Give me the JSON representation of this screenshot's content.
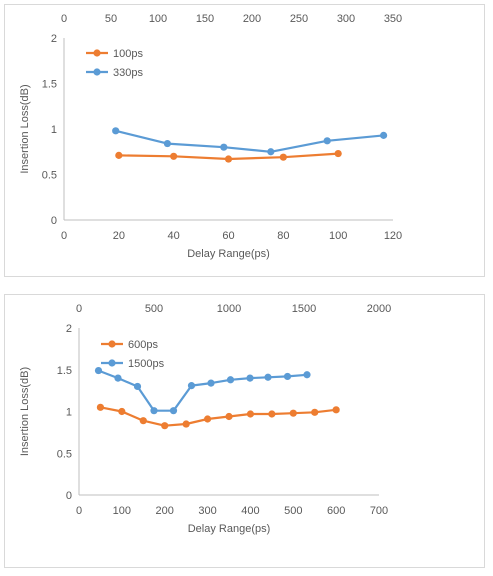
{
  "chart_data": [
    {
      "type": "scatter",
      "xlabel": "Delay Range(ps)",
      "ylabel": "Insertion Loss(dB)",
      "xlim": [
        0,
        120
      ],
      "x2lim": [
        0,
        350
      ],
      "ylim": [
        0,
        2
      ],
      "x_ticks": [
        "0",
        "20",
        "40",
        "60",
        "80",
        "100",
        "120"
      ],
      "x2_ticks": [
        "0",
        "50",
        "100",
        "150",
        "200",
        "250",
        "300",
        "350"
      ],
      "y_ticks": [
        "0",
        "0.5",
        "1",
        "1.5",
        "2"
      ],
      "grid": false,
      "legend_position": "top-left",
      "series": [
        {
          "name": "100ps",
          "color": "#ed7d31",
          "axis": "primary",
          "points": [
            [
              20,
              0.71
            ],
            [
              40,
              0.7
            ],
            [
              60,
              0.67
            ],
            [
              80,
              0.69
            ],
            [
              100,
              0.73
            ]
          ]
        },
        {
          "name": "330ps",
          "color": "#5b9bd5",
          "axis": "secondary",
          "points": [
            [
              55,
              0.98
            ],
            [
              110,
              0.84
            ],
            [
              170,
              0.8
            ],
            [
              220,
              0.75
            ],
            [
              280,
              0.87
            ],
            [
              340,
              0.93
            ]
          ]
        }
      ]
    },
    {
      "type": "scatter",
      "xlabel": "Delay Range(ps)",
      "ylabel": "Insertion Loss(dB)",
      "xlim": [
        0,
        700
      ],
      "x2lim": [
        0,
        2000
      ],
      "ylim": [
        0,
        2
      ],
      "x_ticks": [
        "0",
        "100",
        "200",
        "300",
        "400",
        "500",
        "600",
        "700"
      ],
      "x2_ticks": [
        "0",
        "500",
        "1000",
        "1500",
        "2000"
      ],
      "y_ticks": [
        "0",
        "0.5",
        "1",
        "1.5",
        "2"
      ],
      "grid": false,
      "legend_position": "top-left",
      "series": [
        {
          "name": "600ps",
          "color": "#ed7d31",
          "axis": "primary",
          "points": [
            [
              50,
              1.05
            ],
            [
              100,
              1.0
            ],
            [
              150,
              0.89
            ],
            [
              200,
              0.83
            ],
            [
              250,
              0.85
            ],
            [
              300,
              0.91
            ],
            [
              350,
              0.94
            ],
            [
              400,
              0.97
            ],
            [
              450,
              0.97
            ],
            [
              500,
              0.98
            ],
            [
              550,
              0.99
            ],
            [
              600,
              1.02
            ]
          ]
        },
        {
          "name": "1500ps",
          "color": "#5b9bd5",
          "axis": "secondary",
          "points": [
            [
              130,
              1.49
            ],
            [
              260,
              1.4
            ],
            [
              390,
              1.3
            ],
            [
              500,
              1.01
            ],
            [
              630,
              1.01
            ],
            [
              750,
              1.31
            ],
            [
              880,
              1.34
            ],
            [
              1010,
              1.38
            ],
            [
              1140,
              1.4
            ],
            [
              1260,
              1.41
            ],
            [
              1390,
              1.42
            ],
            [
              1520,
              1.44
            ]
          ]
        }
      ]
    }
  ]
}
